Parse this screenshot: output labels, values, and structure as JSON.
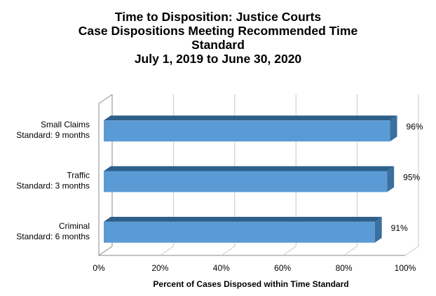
{
  "chart_data": {
    "type": "bar",
    "orientation": "horizontal",
    "title_lines": [
      "Time to Disposition: Justice Courts",
      "Case Dispositions Meeting Recommended Time",
      "Standard",
      "July 1, 2019 to June 30, 2020"
    ],
    "categories": [
      [
        "Small Claims",
        "Standard: 9 months"
      ],
      [
        "Traffic",
        "Standard: 3 months"
      ],
      [
        "Criminal",
        "Standard: 6 months"
      ]
    ],
    "values": [
      96,
      95,
      91
    ],
    "value_labels": [
      "96%",
      "95%",
      "91%"
    ],
    "xlabel": "Percent of Cases Disposed within Time Standard",
    "xlim": [
      0,
      100
    ],
    "x_ticks": [
      0,
      20,
      40,
      60,
      80,
      100
    ],
    "x_tick_labels": [
      "0%",
      "20%",
      "40%",
      "60%",
      "80%",
      "100%"
    ],
    "grid": true,
    "style_3d": true,
    "colors": {
      "bar_front": "#5b9bd5",
      "bar_top": "#2e5f8a",
      "bar_side": "#3a6f9e",
      "grid": "#c8c8c8",
      "axis": "#888888"
    }
  }
}
